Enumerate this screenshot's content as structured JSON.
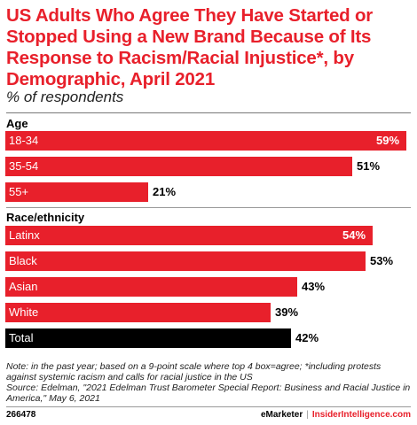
{
  "title": "US Adults Who Agree They Have Started or Stopped Using a New Brand Because of Its Response to Racism/Racial Injustice*, by Demographic, April 2021",
  "subtitle": "% of respondents",
  "colors": {
    "bar": "#e8202b",
    "total_bar": "#000000",
    "title": "#e8202b"
  },
  "chart_data": {
    "type": "bar",
    "orientation": "horizontal",
    "value_format": "percent",
    "xlim": [
      0,
      59
    ],
    "groups": [
      {
        "label": "Age",
        "bars": [
          {
            "category": "18-34",
            "value": 59,
            "value_label": "59%"
          },
          {
            "category": "35-54",
            "value": 51,
            "value_label": "51%"
          },
          {
            "category": "55+",
            "value": 21,
            "value_label": "21%"
          }
        ]
      },
      {
        "label": "Race/ethnicity",
        "bars": [
          {
            "category": "Latinx",
            "value": 54,
            "value_label": "54%"
          },
          {
            "category": "Black",
            "value": 53,
            "value_label": "53%"
          },
          {
            "category": "Asian",
            "value": 43,
            "value_label": "43%"
          },
          {
            "category": "White",
            "value": 39,
            "value_label": "39%"
          },
          {
            "category": "Total",
            "value": 42,
            "value_label": "42%",
            "highlight": true
          }
        ]
      }
    ]
  },
  "note": "Note: in the past year; based on a 9-point scale where top 4 box=agree; *including protests against systemic racism and calls for racial justice in the US",
  "source": "Source: Edelman, \"2021 Edelman Trust Barometer Special Report: Business and Racial Justice in America,\" May 6, 2021",
  "footer": {
    "chart_id": "266478",
    "brand": "eMarketer",
    "divider": "|",
    "site": "InsiderIntelligence.com"
  }
}
